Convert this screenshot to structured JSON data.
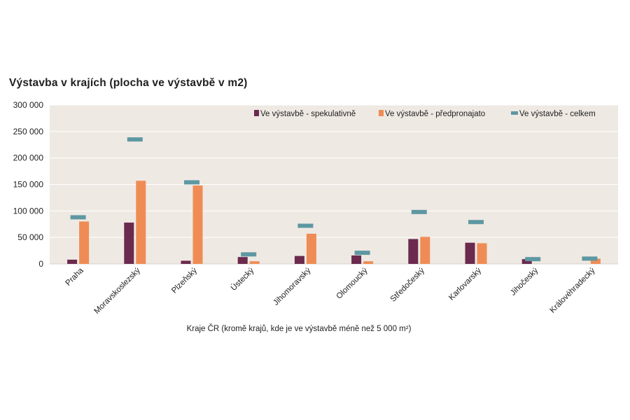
{
  "chart_data": {
    "type": "bar",
    "title": "Výstavba v krajích (plocha ve výstavbě v m2)",
    "xlabel": "Kraje ČR (kromě krajů, kde je ve výstavbě méně než 5 000 m²)",
    "ylabel": "",
    "ylim": [
      0,
      300000
    ],
    "yticks": [
      0,
      50000,
      100000,
      150000,
      200000,
      250000,
      300000
    ],
    "ytick_labels": [
      "0",
      "50 000",
      "100 000",
      "150 000",
      "200 000",
      "250 000",
      "300 000"
    ],
    "grid": true,
    "legend_position": "top-right",
    "categories": [
      "Praha",
      "Moravskoslezský",
      "Plzeňský",
      "Ústecký",
      "Jihomoravský",
      "Olomoucký",
      "Středočeský",
      "Karlovarský",
      "Jihočeský",
      "Královéhradecký"
    ],
    "series": [
      {
        "name": "Ve výstavbě - spekulativně",
        "kind": "bar",
        "color": "#6b2a4e",
        "values": [
          8000,
          78000,
          6000,
          13000,
          15000,
          16000,
          47000,
          40000,
          9000,
          0
        ]
      },
      {
        "name": "Ve výstavbě - předpronajato",
        "kind": "bar",
        "color": "#ef8c55",
        "values": [
          80000,
          157000,
          148000,
          5000,
          57000,
          5000,
          51000,
          39000,
          0,
          10000
        ]
      },
      {
        "name": "Ve výstavbě - celkem",
        "kind": "marker",
        "color": "#5e98a2",
        "values": [
          88000,
          235000,
          154000,
          18000,
          72000,
          21000,
          98000,
          79000,
          9000,
          10000
        ]
      }
    ]
  }
}
